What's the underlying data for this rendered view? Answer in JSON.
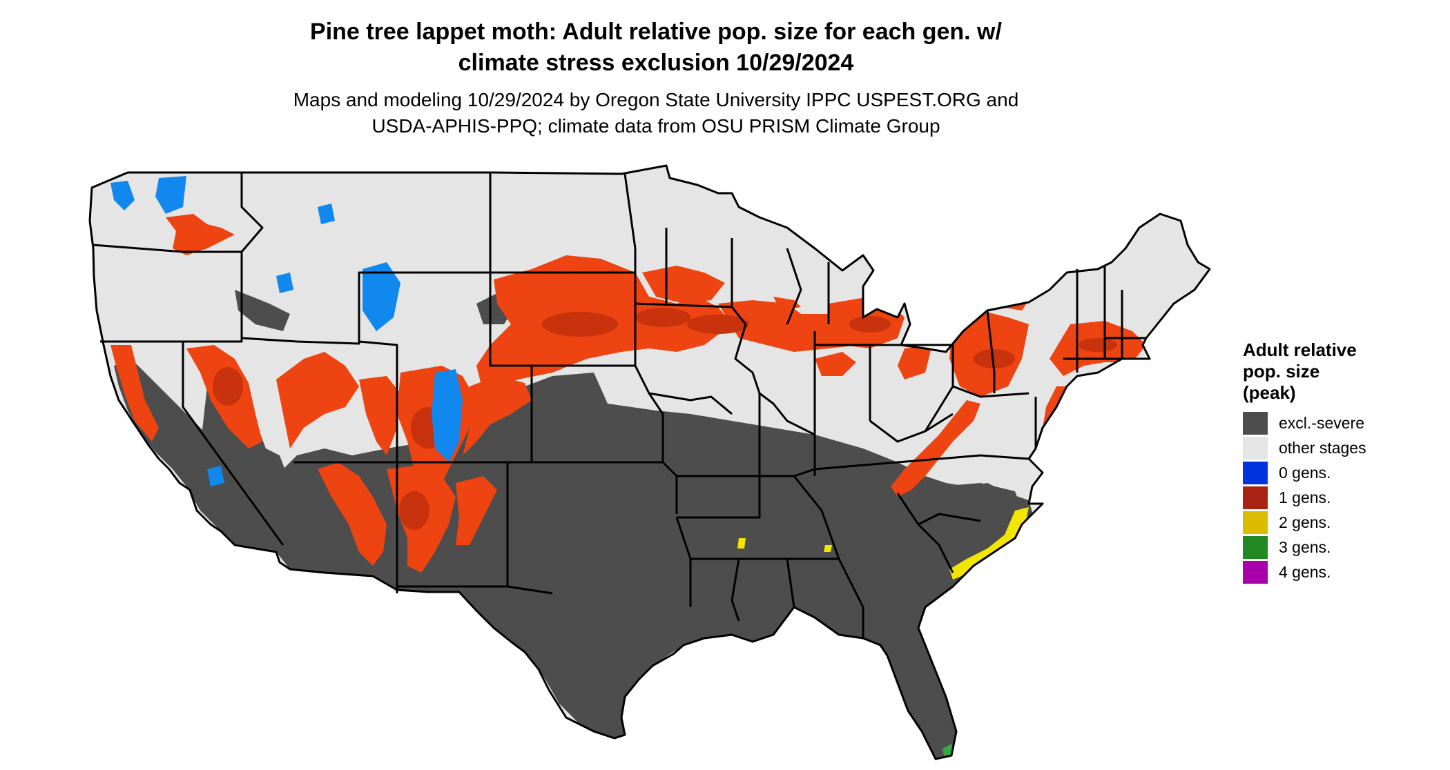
{
  "title_line1": "Pine tree lappet moth: Adult relative pop. size for each gen. w/",
  "title_line2": "climate stress exclusion 10/29/2024",
  "subtitle_line1": "Maps and modeling 10/29/2024 by Oregon State University IPPC USPEST.ORG and",
  "subtitle_line2": "USDA-APHIS-PPQ; climate data from OSU PRISM Climate Group",
  "legend": {
    "title_lines": [
      "Adult relative",
      "pop. size",
      "(peak)"
    ],
    "items": [
      {
        "label": "excl.-severe",
        "color": "#4d4d4d"
      },
      {
        "label": "other stages",
        "color": "#e5e5e5"
      },
      {
        "label": "0 gens.",
        "color": "#0033dd"
      },
      {
        "label": "1 gens.",
        "color": "#aa2211"
      },
      {
        "label": "2 gens.",
        "color": "#ddbb00"
      },
      {
        "label": "3 gens.",
        "color": "#228822"
      },
      {
        "label": "4 gens.",
        "color": "#aa00aa"
      }
    ]
  },
  "map_colors": {
    "excluded": "#4d4d4d",
    "other_stages": "#e5e5e5",
    "one_gen_fill": "#ee4411",
    "one_gen_dark": "#c8320c",
    "zero_gen": "#1188ee",
    "two_gen": "#f2e600",
    "three_gen": "#33aa44",
    "borders": "#000000"
  }
}
